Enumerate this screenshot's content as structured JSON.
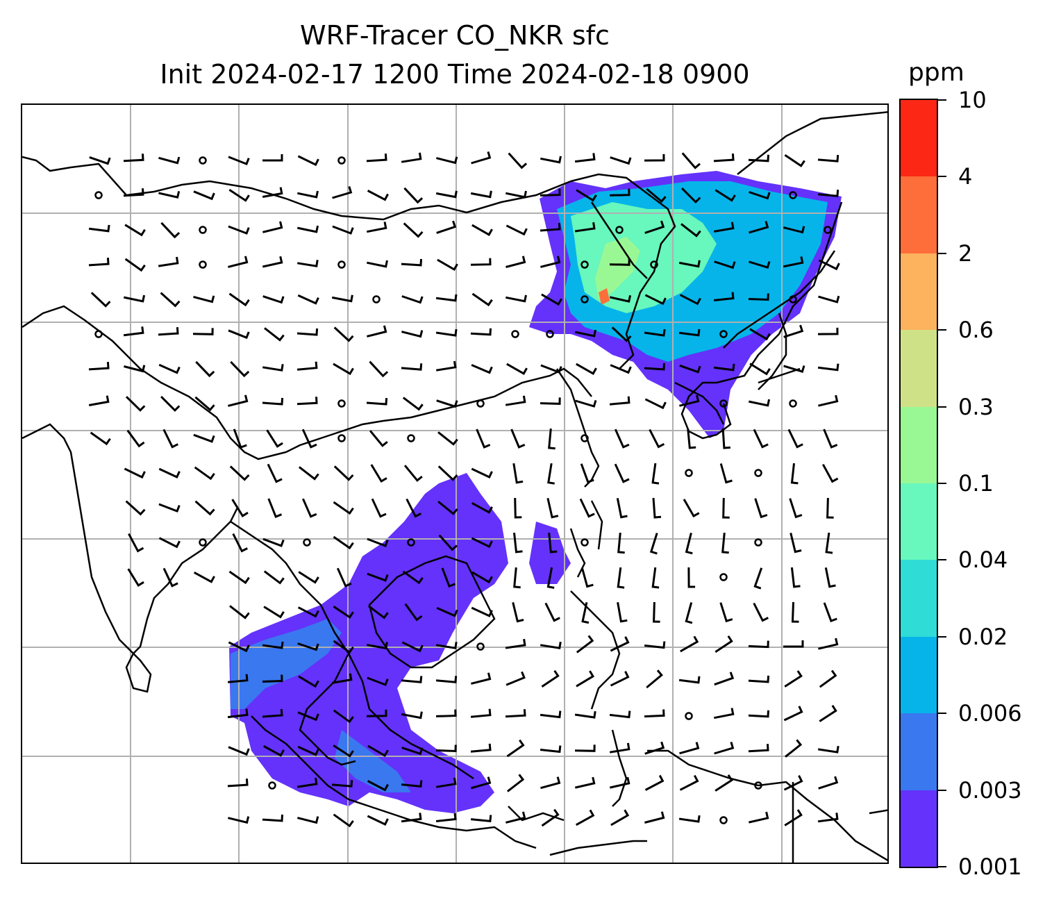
{
  "title": {
    "line1": "WRF-Tracer CO_NKR sfc",
    "line2": "Init 2024-02-17 1200 Time 2024-02-18 0900"
  },
  "colorbar": {
    "unit": "ppm",
    "levels": [
      {
        "label": "0.001",
        "color": "#6432fa"
      },
      {
        "label": "0.003",
        "color": "#3a78f0"
      },
      {
        "label": "0.006",
        "color": "#06b4ea"
      },
      {
        "label": "0.02",
        "color": "#2fdcd6"
      },
      {
        "label": "0.04",
        "color": "#68f7bc"
      },
      {
        "label": "0.1",
        "color": "#9af894"
      },
      {
        "label": "0.3",
        "color": "#cfe187"
      },
      {
        "label": "0.6",
        "color": "#fdb25e"
      },
      {
        "label": "2",
        "color": "#fe6e3b"
      },
      {
        "label": "4",
        "color": "#fd2716"
      },
      {
        "label": "10",
        "color": "#fd2716"
      }
    ]
  },
  "map": {
    "gridlines": true,
    "coastline_color": "#000000",
    "grid_color": "#b0b0b0"
  }
}
